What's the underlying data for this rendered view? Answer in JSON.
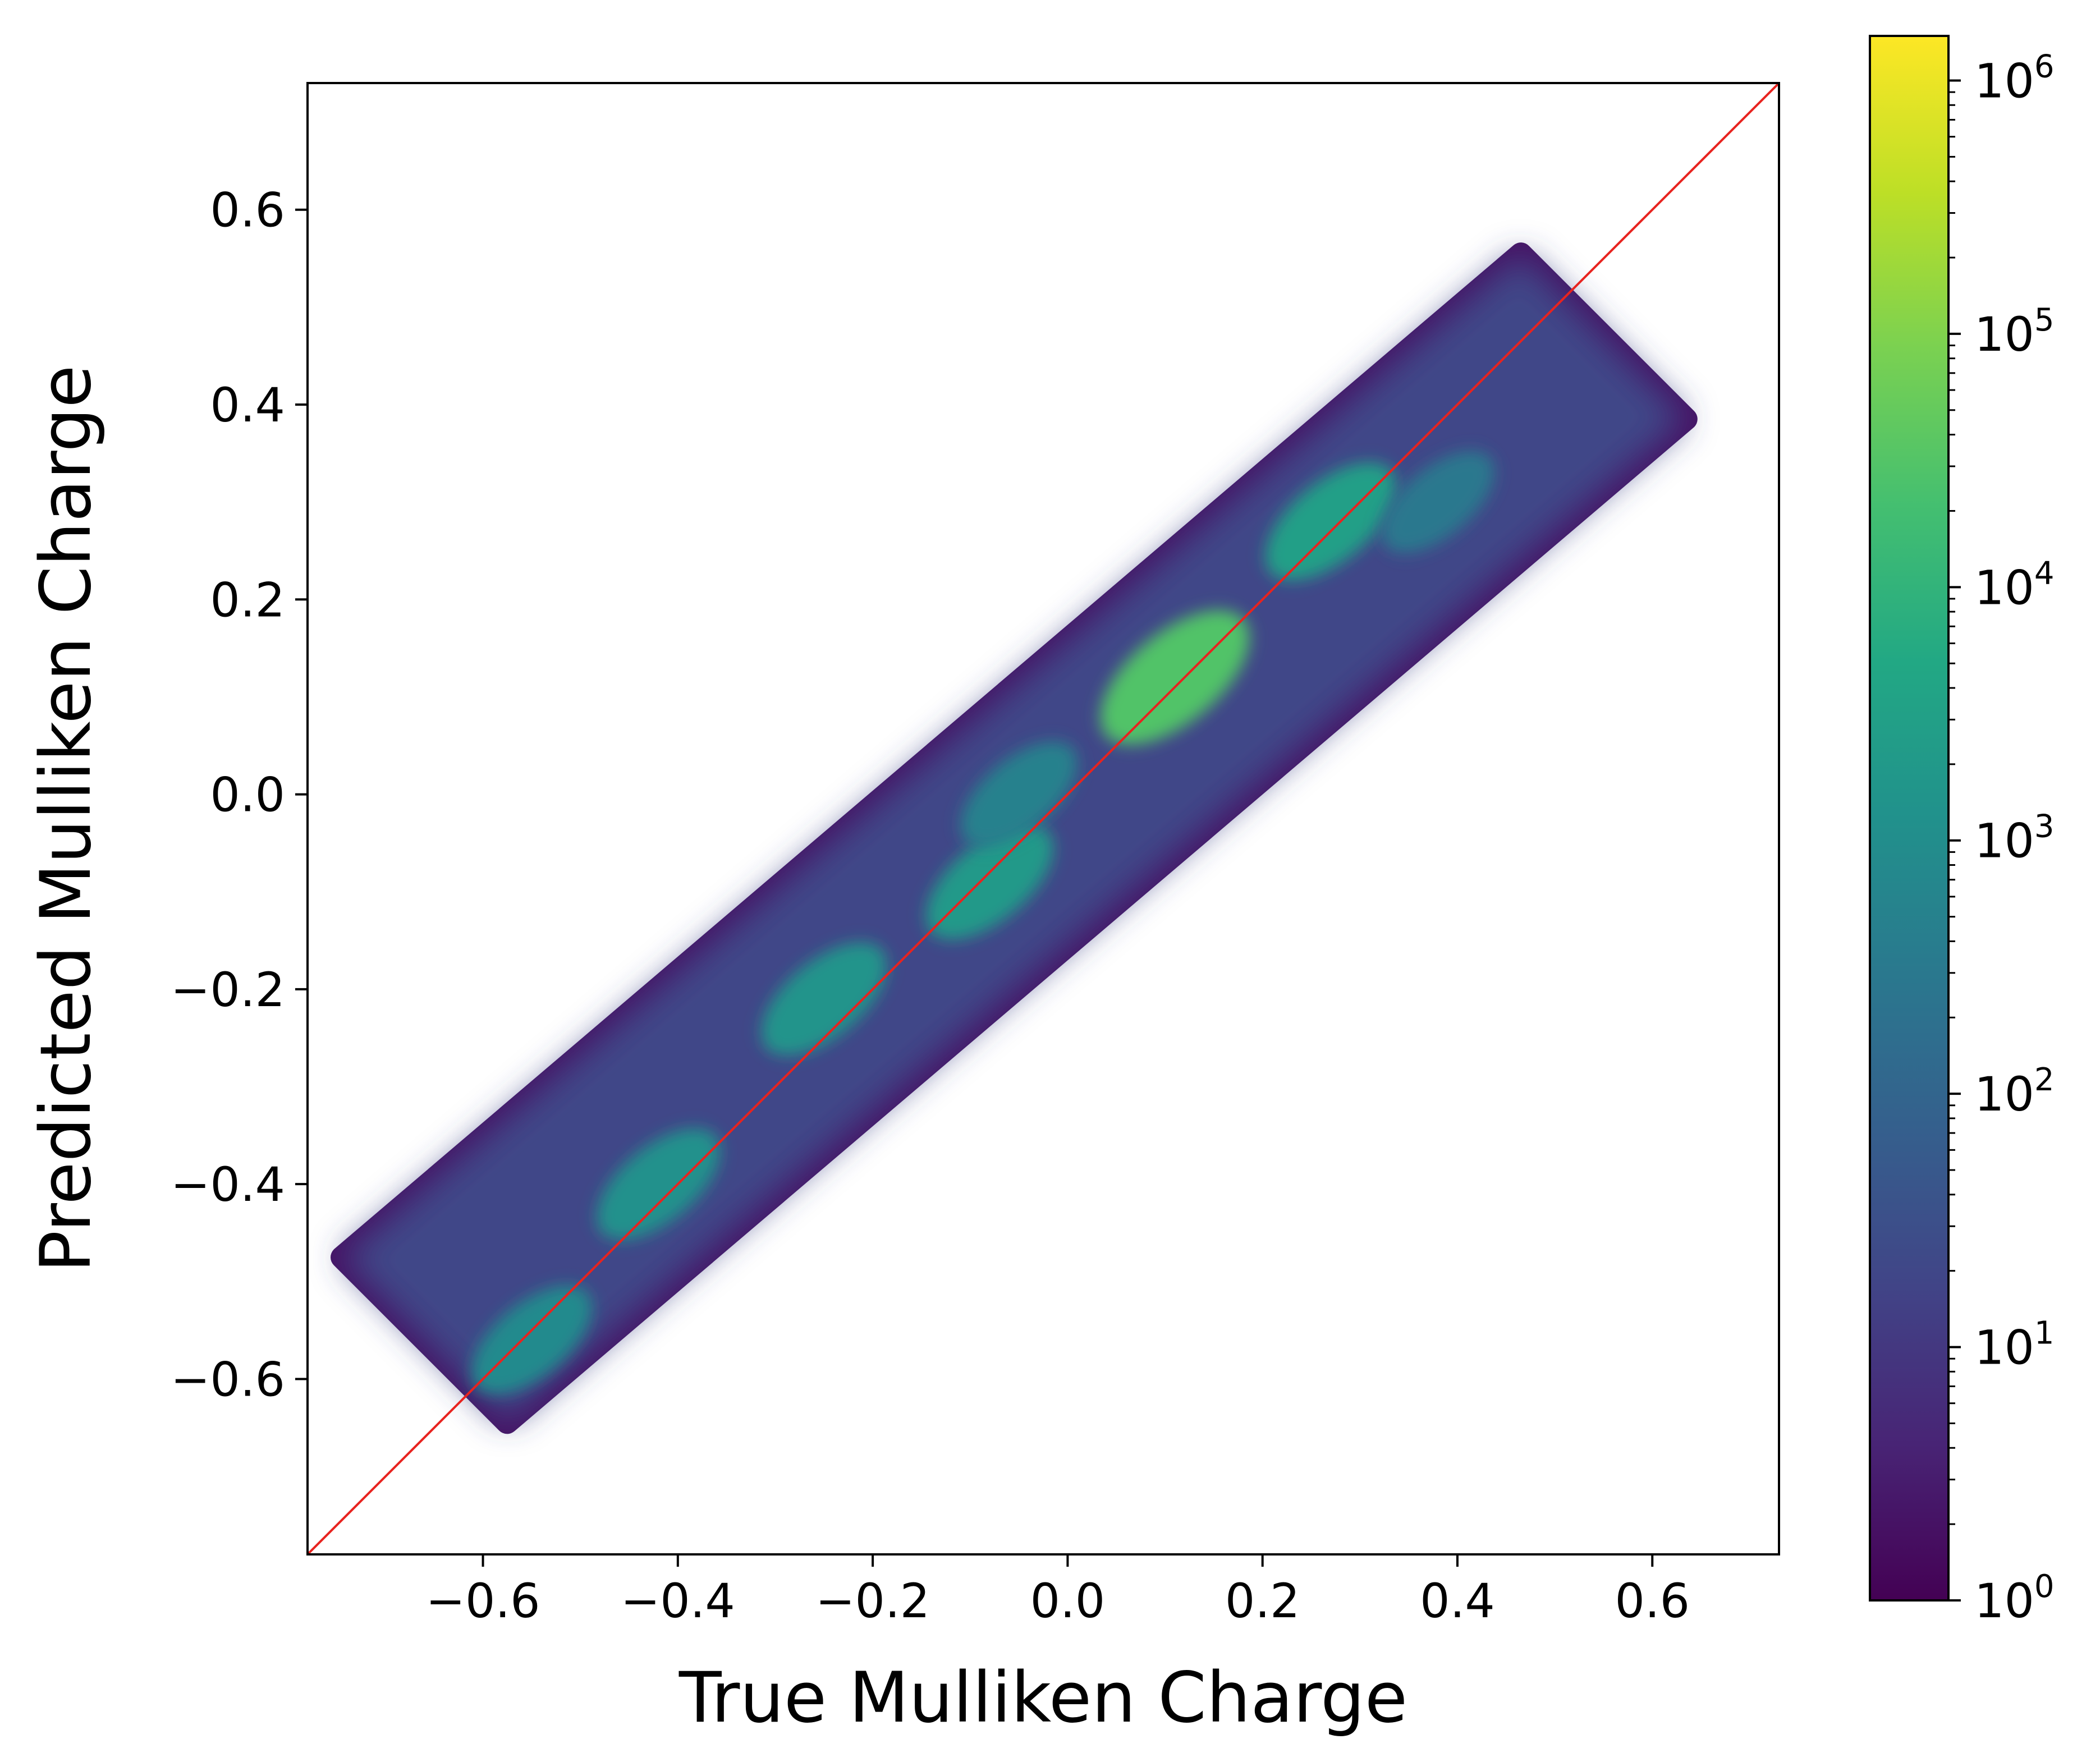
{
  "chart_data": {
    "type": "heatmap",
    "title": "",
    "xlabel": "True Mulliken Charge",
    "ylabel": "Predicted Mulliken Charge",
    "xlim": [
      -0.78,
      0.73
    ],
    "ylim": [
      -0.78,
      0.73
    ],
    "x_ticks": [
      -0.6,
      -0.4,
      -0.2,
      0.0,
      0.2,
      0.4,
      0.6
    ],
    "x_tick_labels": [
      "−0.6",
      "−0.4",
      "−0.2",
      "0.0",
      "0.2",
      "0.4",
      "0.6"
    ],
    "y_ticks": [
      -0.6,
      -0.4,
      -0.2,
      0.0,
      0.2,
      0.4,
      0.6
    ],
    "y_tick_labels": [
      "−0.6",
      "−0.4",
      "−0.2",
      "0.0",
      "0.2",
      "0.4",
      "0.6"
    ],
    "colormap": "viridis",
    "color_scale": "log",
    "colorbar": {
      "min": 1,
      "max": 1500000,
      "tick_base": "10",
      "tick_exponents": [
        "0",
        "1",
        "2",
        "3",
        "4",
        "5",
        "6"
      ]
    },
    "reference_line": {
      "from": [
        -0.78,
        -0.78
      ],
      "to": [
        0.73,
        0.73
      ],
      "color": "#e8231f",
      "label": "y = x"
    },
    "density_clusters": [
      {
        "x": 0.11,
        "y": 0.12,
        "count": 30000
      },
      {
        "x": 0.27,
        "y": 0.28,
        "count": 3000
      },
      {
        "x": -0.08,
        "y": -0.09,
        "count": 2000
      },
      {
        "x": -0.25,
        "y": -0.21,
        "count": 1500
      },
      {
        "x": -0.42,
        "y": -0.4,
        "count": 1200
      },
      {
        "x": -0.55,
        "y": -0.56,
        "count": 800
      },
      {
        "x": -0.05,
        "y": 0.0,
        "count": 500
      },
      {
        "x": 0.38,
        "y": 0.3,
        "count": 300
      }
    ],
    "grid": false,
    "legend": "none"
  }
}
